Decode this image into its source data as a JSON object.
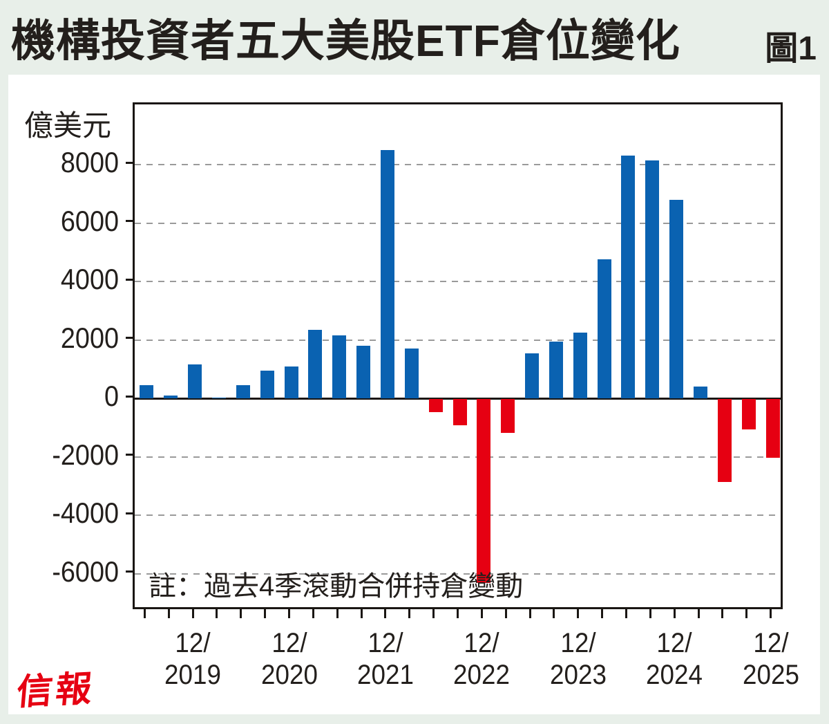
{
  "title": "機構投資者五大美股ETF倉位變化",
  "figure_label": "圖1",
  "unit_label": "億美元",
  "note": "註：過去4季滾動合併持倉變動",
  "logo_text": "信報",
  "colors": {
    "positive_bar": "#0a62b1",
    "negative_bar": "#e60012",
    "page_background": "#e8efe9",
    "panel_background": "#ffffff",
    "gridline": "#9a9a9a",
    "axis": "#1a1613",
    "logo_red": "#e60012",
    "text": "#231f1c"
  },
  "chart_data": {
    "type": "bar",
    "title": "機構投資者五大美股ETF倉位變化",
    "ylabel": "億美元",
    "grid": "horizontal-dashed",
    "legend": "none",
    "ylim": [
      -7290,
      10060
    ],
    "yticks": [
      8000,
      6000,
      4000,
      2000,
      0,
      -2000,
      -4000,
      -6000
    ],
    "x": [
      "6/2019",
      "9/2019",
      "12/2019",
      "3/2020",
      "6/2020",
      "9/2020",
      "12/2020",
      "3/2021",
      "6/2021",
      "9/2021",
      "12/2021",
      "3/2022",
      "6/2022",
      "9/2022",
      "12/2022",
      "3/2023",
      "6/2023",
      "9/2023",
      "12/2023",
      "3/2024",
      "6/2024",
      "9/2024",
      "12/2024",
      "3/2025",
      "6/2025",
      "9/2025",
      "12/2025"
    ],
    "values": [
      450,
      100,
      1150,
      30,
      450,
      950,
      1100,
      2350,
      2150,
      1800,
      8500,
      1700,
      -450,
      -900,
      -6300,
      -1150,
      1550,
      1950,
      2250,
      4750,
      8300,
      8150,
      6800,
      400,
      -2850,
      -1050,
      -2000
    ],
    "x_tick_labels": [
      {
        "top": "12/",
        "bottom": "2019",
        "slot": 2
      },
      {
        "top": "12/",
        "bottom": "2020",
        "slot": 6
      },
      {
        "top": "12/",
        "bottom": "2021",
        "slot": 10
      },
      {
        "top": "12/",
        "bottom": "2022",
        "slot": 14
      },
      {
        "top": "12/",
        "bottom": "2023",
        "slot": 18
      },
      {
        "top": "12/",
        "bottom": "2024",
        "slot": 22
      },
      {
        "top": "12/",
        "bottom": "2025",
        "slot": 26
      }
    ]
  }
}
